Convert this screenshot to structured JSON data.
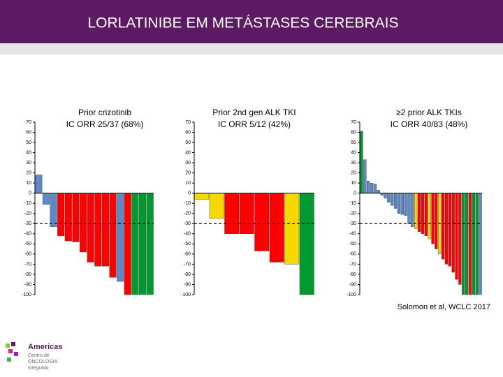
{
  "header": {
    "title": "LORLATINIBE EM METÁSTASES CEREBRAIS"
  },
  "chart_data": [
    {
      "type": "bar",
      "title": [
        "Prior crizotinib",
        "IC ORR 25/37 (68%)"
      ],
      "values": [
        18,
        -11,
        -33,
        -42,
        -47,
        -48,
        -58,
        -68,
        -72,
        -72,
        -83,
        -87,
        -100,
        -100,
        -100,
        -100
      ],
      "colors": [
        "#5b8ac6",
        "#5b8ac6",
        "#5b8ac6",
        "#ff0000",
        "#ff0000",
        "#ff0000",
        "#ff0000",
        "#ff0000",
        "#ff0000",
        "#ff0000",
        "#ff0000",
        "#5b8ac6",
        "#ff0000",
        "#009a2e",
        "#009a2e",
        "#009a2e"
      ],
      "ylim": [
        -100,
        70
      ],
      "yticks": [
        -100,
        -90,
        -80,
        -70,
        -60,
        -50,
        -40,
        -30,
        -20,
        -10,
        0,
        10,
        20,
        30,
        40,
        50,
        60,
        70
      ],
      "reference_line": -30
    },
    {
      "type": "bar",
      "title": [
        "Prior 2nd gen ALK TKI",
        "IC ORR 5/12 (42%)"
      ],
      "values": [
        -6,
        -25,
        -40,
        -40,
        -57,
        -68,
        -70,
        -100
      ],
      "colors": [
        "#f5d800",
        "#f5d800",
        "#ff0000",
        "#ff0000",
        "#ff0000",
        "#ff0000",
        "#f5d800",
        "#009a2e"
      ],
      "ylim": [
        -100,
        70
      ],
      "yticks": [
        -100,
        -90,
        -80,
        -70,
        -60,
        -50,
        -40,
        -30,
        -20,
        -10,
        0,
        10,
        20,
        30,
        40,
        50,
        60,
        70
      ],
      "reference_line": -30
    },
    {
      "type": "bar",
      "title": [
        "≥2 prior ALK TKIs",
        "IC ORR 40/83 (48%)"
      ],
      "values": [
        61,
        33,
        12,
        10,
        9,
        3,
        -2,
        -5,
        -9,
        -12,
        -15,
        -20,
        -21,
        -22,
        -30,
        -33,
        -35,
        -38,
        -40,
        -42,
        -45,
        -50,
        -55,
        -60,
        -65,
        -70,
        -72,
        -78,
        -85,
        -90,
        -100,
        -100,
        -100,
        -100,
        -100,
        -100
      ],
      "colors": [
        "#009a2e",
        "#5b8ac6",
        "#5b8ac6",
        "#5b8ac6",
        "#5b8ac6",
        "#5b8ac6",
        "#5b8ac6",
        "#5b8ac6",
        "#5b8ac6",
        "#5b8ac6",
        "#5b8ac6",
        "#5b8ac6",
        "#5b8ac6",
        "#5b8ac6",
        "#5b8ac6",
        "#5b8ac6",
        "#f5d800",
        "#ff0000",
        "#ff0000",
        "#ff0000",
        "#f5d800",
        "#ff0000",
        "#ff0000",
        "#f5d800",
        "#ff0000",
        "#ff0000",
        "#ff0000",
        "#ff0000",
        "#ff0000",
        "#ff0000",
        "#009a2e",
        "#009a2e",
        "#ff0000",
        "#009a2e",
        "#009a2e",
        "#5b8ac6"
      ],
      "ylim": [
        -100,
        70
      ],
      "yticks": [
        -100,
        -90,
        -80,
        -70,
        -60,
        -50,
        -40,
        -30,
        -20,
        -10,
        0,
        10,
        20,
        30,
        40,
        50,
        60,
        70
      ],
      "reference_line": -30
    }
  ],
  "footnote": "Solomon et al, WCLC 2017",
  "logo": {
    "name": "Americas",
    "line1": "Centro de",
    "line2": "ONCOLOGIA",
    "line3": "Integrado"
  }
}
